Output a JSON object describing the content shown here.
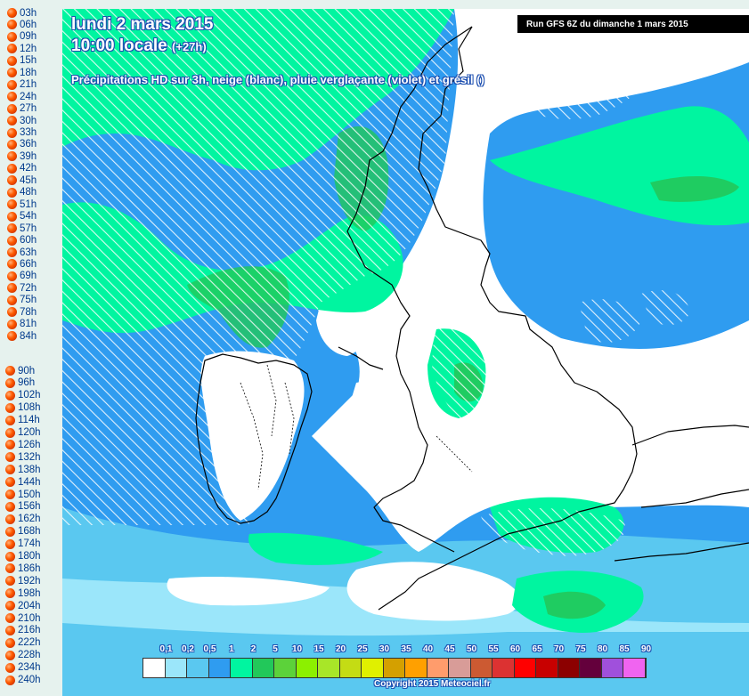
{
  "hours_group1": [
    "03h",
    "06h",
    "09h",
    "12h",
    "15h",
    "18h",
    "21h",
    "24h",
    "27h",
    "30h",
    "33h",
    "36h",
    "39h",
    "42h",
    "45h",
    "48h",
    "51h",
    "54h",
    "57h",
    "60h",
    "63h",
    "66h",
    "69h",
    "72h",
    "75h",
    "78h",
    "81h",
    "84h"
  ],
  "hours_group2": [
    "90h",
    "96h",
    "102h",
    "108h",
    "114h",
    "120h",
    "126h",
    "132h",
    "138h",
    "144h",
    "150h",
    "156h",
    "162h",
    "168h",
    "174h",
    "180h",
    "186h",
    "192h",
    "198h",
    "204h",
    "210h",
    "216h",
    "222h",
    "228h",
    "234h",
    "240h"
  ],
  "map": {
    "title_date": "lundi 2 mars 2015",
    "title_time": "10:00 locale",
    "title_offset": "(+27h)",
    "subtitle": "Précipitations HD sur 3h, neige (blanc), pluie verglaçante (violet) et grésil ()",
    "run": "Run GFS 6Z du dimanche 1 mars 2015",
    "copyright": "Copyright 2015 Meteociel.fr"
  },
  "legend": {
    "labels": [
      "0,1",
      "0,2",
      "0,5",
      "1",
      "2",
      "5",
      "10",
      "15",
      "20",
      "25",
      "30",
      "35",
      "40",
      "45",
      "50",
      "55",
      "60",
      "65",
      "70",
      "75",
      "80",
      "85",
      "90"
    ],
    "colors": [
      "#ffffff",
      "#9be6fa",
      "#5ac8f0",
      "#2f9cf0",
      "#00f5a0",
      "#22c85a",
      "#5cd23a",
      "#8cf000",
      "#a8e628",
      "#c4dc14",
      "#e0f000",
      "#d4a000",
      "#ffa000",
      "#ff9c6c",
      "#d89c98",
      "#cc5a32",
      "#dc3232",
      "#ff0000",
      "#c80000",
      "#8c0000",
      "#64003c",
      "#a050dc",
      "#f064f0"
    ]
  }
}
